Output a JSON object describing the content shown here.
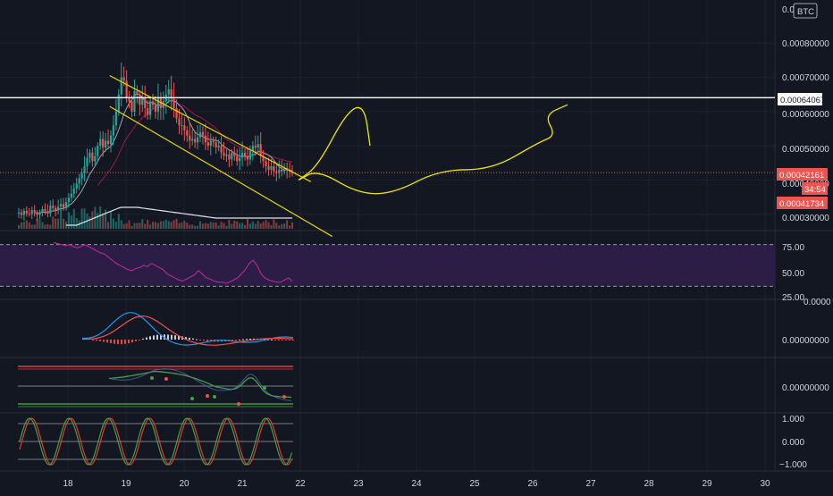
{
  "colors": {
    "background": "#131722",
    "up": "#26a69a",
    "down": "#ef5350",
    "grid": "#2a2e39",
    "axis_text": "#d1d4dc",
    "hline": "#ffffff",
    "channel": "#e5d800",
    "drawing": "#f2e600",
    "rsi_line": "#b0268f",
    "rsi_band": "#2b1d45",
    "macd": "#2196f3",
    "signal": "#ef5350",
    "price_label": "#ef5350"
  },
  "header": {
    "currency_badge": "BTC",
    "top_tick_fragment": "0.0"
  },
  "price_scale": {
    "ticks": [
      "0.00080000",
      "0.00070000",
      "0.00060000",
      "0.00050000",
      "0.00040000",
      "0.00030000"
    ],
    "marked_level": "0.00064067",
    "last_price": "0.00042161",
    "countdown": "34:54",
    "bid_price": "0.00041734"
  },
  "rsi_scale": {
    "ticks": [
      "75.00",
      "50.00",
      "25.00"
    ],
    "overlap_fragment": "0.0000"
  },
  "macd_scale": {
    "ticks": [
      "0.00000000"
    ]
  },
  "stoch_scale": {
    "ticks": [
      "0.00000000"
    ]
  },
  "osc_scale": {
    "ticks": [
      "1.000",
      "0.000",
      "−1.000"
    ]
  },
  "time_axis": {
    "labels": [
      "18",
      "19",
      "20",
      "21",
      "22",
      "23",
      "24",
      "25",
      "26",
      "27",
      "28",
      "29",
      "30"
    ]
  },
  "chart_data": {
    "type": "candlestick",
    "y_range": [
      0.00026,
      0.0009
    ],
    "x_range_days": [
      17.7,
      30.25
    ],
    "price_close": [
      0.000305,
      0.000298,
      0.00031,
      0.000302,
      0.0003,
      0.000312,
      0.000305,
      0.000298,
      0.000305,
      0.000315,
      0.000308,
      0.000302,
      0.000325,
      0.000318,
      0.000312,
      0.000322,
      0.00033,
      0.000318,
      0.000335,
      0.000348,
      0.00036,
      0.000375,
      0.00039,
      0.000405,
      0.00042,
      0.00044,
      0.000465,
      0.00048,
      0.000455,
      0.00047,
      0.0005,
      0.00052,
      0.000495,
      0.000515,
      0.000505,
      0.00053,
      0.00056,
      0.0006,
      0.00065,
      0.0007,
      0.00069,
      0.00064,
      0.00063,
      0.0006,
      0.00066,
      0.00065,
      0.00062,
      0.00064,
      0.00061,
      0.00059,
      0.00063,
      0.00062,
      0.0006,
      0.00064,
      0.00061,
      0.00063,
      0.00065,
      0.000665,
      0.00064,
      0.00061,
      0.00058,
      0.00056,
      0.00056,
      0.000545,
      0.00053,
      0.000515,
      0.00052,
      0.00051,
      0.000525,
      0.00054,
      0.00053,
      0.00051,
      0.0005,
      0.000515,
      0.00051,
      0.000495,
      0.0005,
      0.00048,
      0.00047,
      0.000475,
      0.00046,
      0.00048,
      0.00047,
      0.000455,
      0.000465,
      0.00048,
      0.00047,
      0.00046,
      0.000485,
      0.0005,
      0.000495,
      0.000505,
      0.00047,
      0.000455,
      0.00044,
      0.00043,
      0.00044,
      0.000425,
      0.00042,
      0.00043,
      0.000425,
      0.000435,
      0.00043,
      0.000425,
      0.000421
    ],
    "channel": {
      "upper": [
        [
          18.72,
          0.000705
        ],
        [
          22.18,
          0.000395
        ]
      ],
      "lower": [
        [
          18.72,
          0.000615
        ],
        [
          22.55,
          0.000235
        ]
      ]
    },
    "hline": 0.00064067,
    "projection_1": [
      [
        21.97,
        0.0004
      ],
      [
        22.3,
        0.00044
      ],
      [
        22.8,
        0.0006
      ],
      [
        23.1,
        0.00062
      ],
      [
        23.2,
        0.0005
      ]
    ],
    "projection_2": [
      [
        21.97,
        0.0004
      ],
      [
        22.3,
        0.00043
      ],
      [
        23.0,
        0.00036
      ],
      [
        23.6,
        0.00036
      ],
      [
        24.4,
        0.00043
      ],
      [
        25.3,
        0.00043
      ],
      [
        26.1,
        0.00051
      ],
      [
        26.4,
        0.00053
      ],
      [
        26.2,
        0.00059
      ],
      [
        26.6,
        0.00062
      ]
    ],
    "rsi": {
      "range": [
        20,
        80
      ],
      "upper_band": 70,
      "lower_band": 30,
      "values": [
        72,
        71,
        70,
        69,
        70,
        68,
        67,
        68,
        70,
        68,
        66,
        64,
        62,
        61,
        58,
        55,
        52,
        50,
        48,
        46,
        45,
        47,
        48,
        50,
        49,
        52,
        50,
        48,
        46,
        42,
        40,
        38,
        36,
        35,
        37,
        39,
        41,
        45,
        42,
        38,
        37,
        35,
        34,
        34,
        33,
        34,
        36,
        38,
        42,
        46,
        52,
        55,
        50,
        42,
        38,
        36,
        35,
        34,
        34,
        36,
        38,
        35
      ]
    }
  }
}
